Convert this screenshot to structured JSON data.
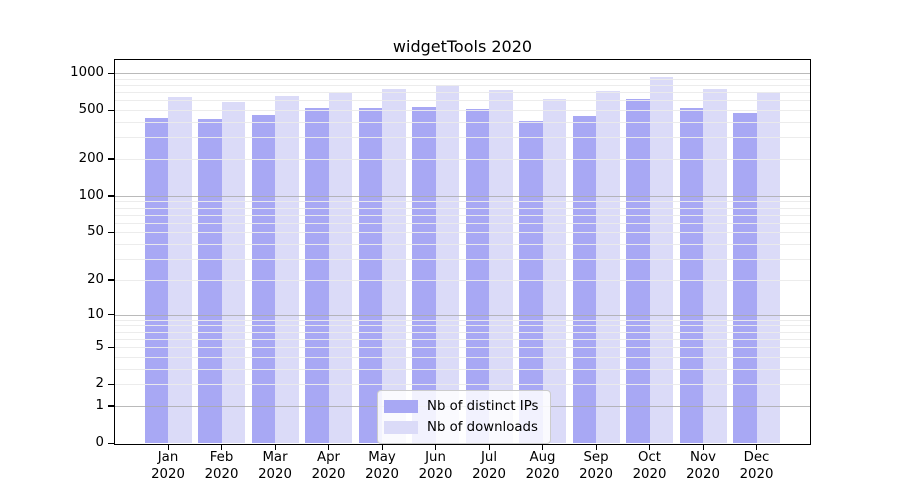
{
  "chart_data": {
    "type": "bar",
    "title": "widgetTools 2020",
    "categories": [
      "Jan",
      "Feb",
      "Mar",
      "Apr",
      "May",
      "Jun",
      "Jul",
      "Aug",
      "Sep",
      "Oct",
      "Nov",
      "Dec"
    ],
    "year_label": "2020",
    "series": [
      {
        "name": "Nb of distinct IPs",
        "color": "#a8a8f4",
        "values": [
          434,
          424,
          452,
          515,
          518,
          527,
          511,
          411,
          451,
          616,
          517,
          474
        ]
      },
      {
        "name": "Nb of downloads",
        "color": "#dbdbf8",
        "values": [
          634,
          580,
          655,
          684,
          748,
          800,
          733,
          616,
          720,
          925,
          745,
          700
        ]
      }
    ],
    "y_axis": {
      "scale": "log1p",
      "tick_values": [
        0,
        1,
        2,
        5,
        10,
        20,
        50,
        100,
        200,
        500,
        1000
      ],
      "tick_labels": [
        "0",
        "1",
        "2",
        "5",
        "10",
        "20",
        "50",
        "100",
        "200",
        "500",
        "1000"
      ],
      "top_value": 1280
    },
    "grid": {
      "minor_color": "#ebebeb",
      "major_color": "#a9a9a9",
      "major_at": [
        1,
        10,
        100,
        1000
      ]
    },
    "legend": {
      "position": "lower center"
    }
  }
}
